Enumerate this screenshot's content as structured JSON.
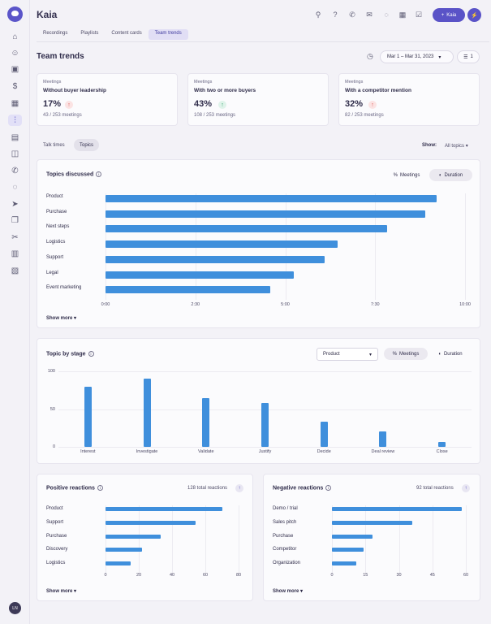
{
  "app": {
    "brand": "Kaia",
    "kaia_button": "Kaia",
    "avatar": "LN"
  },
  "sidebar_icons": [
    "home-icon",
    "users-icon",
    "briefcase-icon",
    "dollar-icon",
    "calendar-icon",
    "waveform-icon",
    "document-icon",
    "inbox-icon",
    "phone-icon",
    "chat-icon",
    "send-icon",
    "copy-icon",
    "scissors-icon",
    "bar-chart-icon",
    "map-icon"
  ],
  "tabs": [
    "Recordings",
    "Playlists",
    "Content cards",
    "Team trends"
  ],
  "page_title": "Team trends",
  "date_range": "Mar 1 – Mar 31, 2023",
  "filter_count": "1",
  "stats": [
    {
      "label": "Meetings",
      "desc": "Without buyer leadership",
      "value": "17%",
      "meta": "43 / 253 meetings",
      "trend": "up-red"
    },
    {
      "label": "Meetings",
      "desc": "With two or more buyers",
      "value": "43%",
      "meta": "108 / 253 meetings",
      "trend": "up-green"
    },
    {
      "label": "Meetings",
      "desc": "With a competitor mention",
      "value": "32%",
      "meta": "82 / 253 meetings",
      "trend": "up-red"
    }
  ],
  "view_tabs": [
    "Talk times",
    "Topics"
  ],
  "show_label": "Show:",
  "show_value": "All topics",
  "topics": {
    "title": "Topics discussed",
    "toggle_meetings": "Meetings",
    "toggle_duration": "Duration",
    "show_more": "Show more"
  },
  "stage": {
    "title": "Topic by stage",
    "select": "Product",
    "toggle_meetings": "Meetings",
    "toggle_duration": "Duration"
  },
  "positive": {
    "title": "Positive reactions",
    "total": "128 total reactions",
    "show_more": "Show more"
  },
  "negative": {
    "title": "Negative reactions",
    "total": "92 total reactions",
    "show_more": "Show more"
  },
  "colors": {
    "accent": "#5a53c7",
    "bar": "#3f8fdc",
    "red": "#d9534f",
    "green": "#2f9e6b"
  },
  "chart_data": [
    {
      "type": "bar",
      "orientation": "horizontal",
      "title": "Topics discussed",
      "categories": [
        "Product",
        "Purchase",
        "Next steps",
        "Logistics",
        "Support",
        "Legal",
        "Event marketing"
      ],
      "values": [
        552,
        534,
        470,
        388,
        366,
        314,
        275
      ],
      "ticks": [
        "0:00",
        "2:30",
        "5:00",
        "7:30",
        "10:00"
      ],
      "xlim": [
        0,
        600
      ]
    },
    {
      "type": "bar",
      "title": "Topic by stage",
      "categories": [
        "Interest",
        "Investigate",
        "Validate",
        "Justify",
        "Decide",
        "Deal review",
        "Close"
      ],
      "values": [
        80,
        90,
        65,
        58,
        33,
        20,
        6
      ],
      "ticks": [
        "0",
        "50",
        "100"
      ],
      "ylim": [
        0,
        100
      ]
    },
    {
      "type": "bar",
      "orientation": "horizontal",
      "title": "Positive reactions",
      "categories": [
        "Product",
        "Support",
        "Purchase",
        "Discovery",
        "Logistics"
      ],
      "values": [
        70,
        54,
        33,
        22,
        15
      ],
      "ticks": [
        "0",
        "20",
        "40",
        "60",
        "80"
      ],
      "xlim": [
        0,
        80
      ]
    },
    {
      "type": "bar",
      "orientation": "horizontal",
      "title": "Negative reactions",
      "categories": [
        "Demo / trial",
        "Sales pitch",
        "Purchase",
        "Competitor",
        "Organization"
      ],
      "values": [
        58,
        36,
        18,
        14,
        11
      ],
      "ticks": [
        "0",
        "15",
        "30",
        "45",
        "60"
      ],
      "xlim": [
        0,
        60
      ]
    }
  ]
}
